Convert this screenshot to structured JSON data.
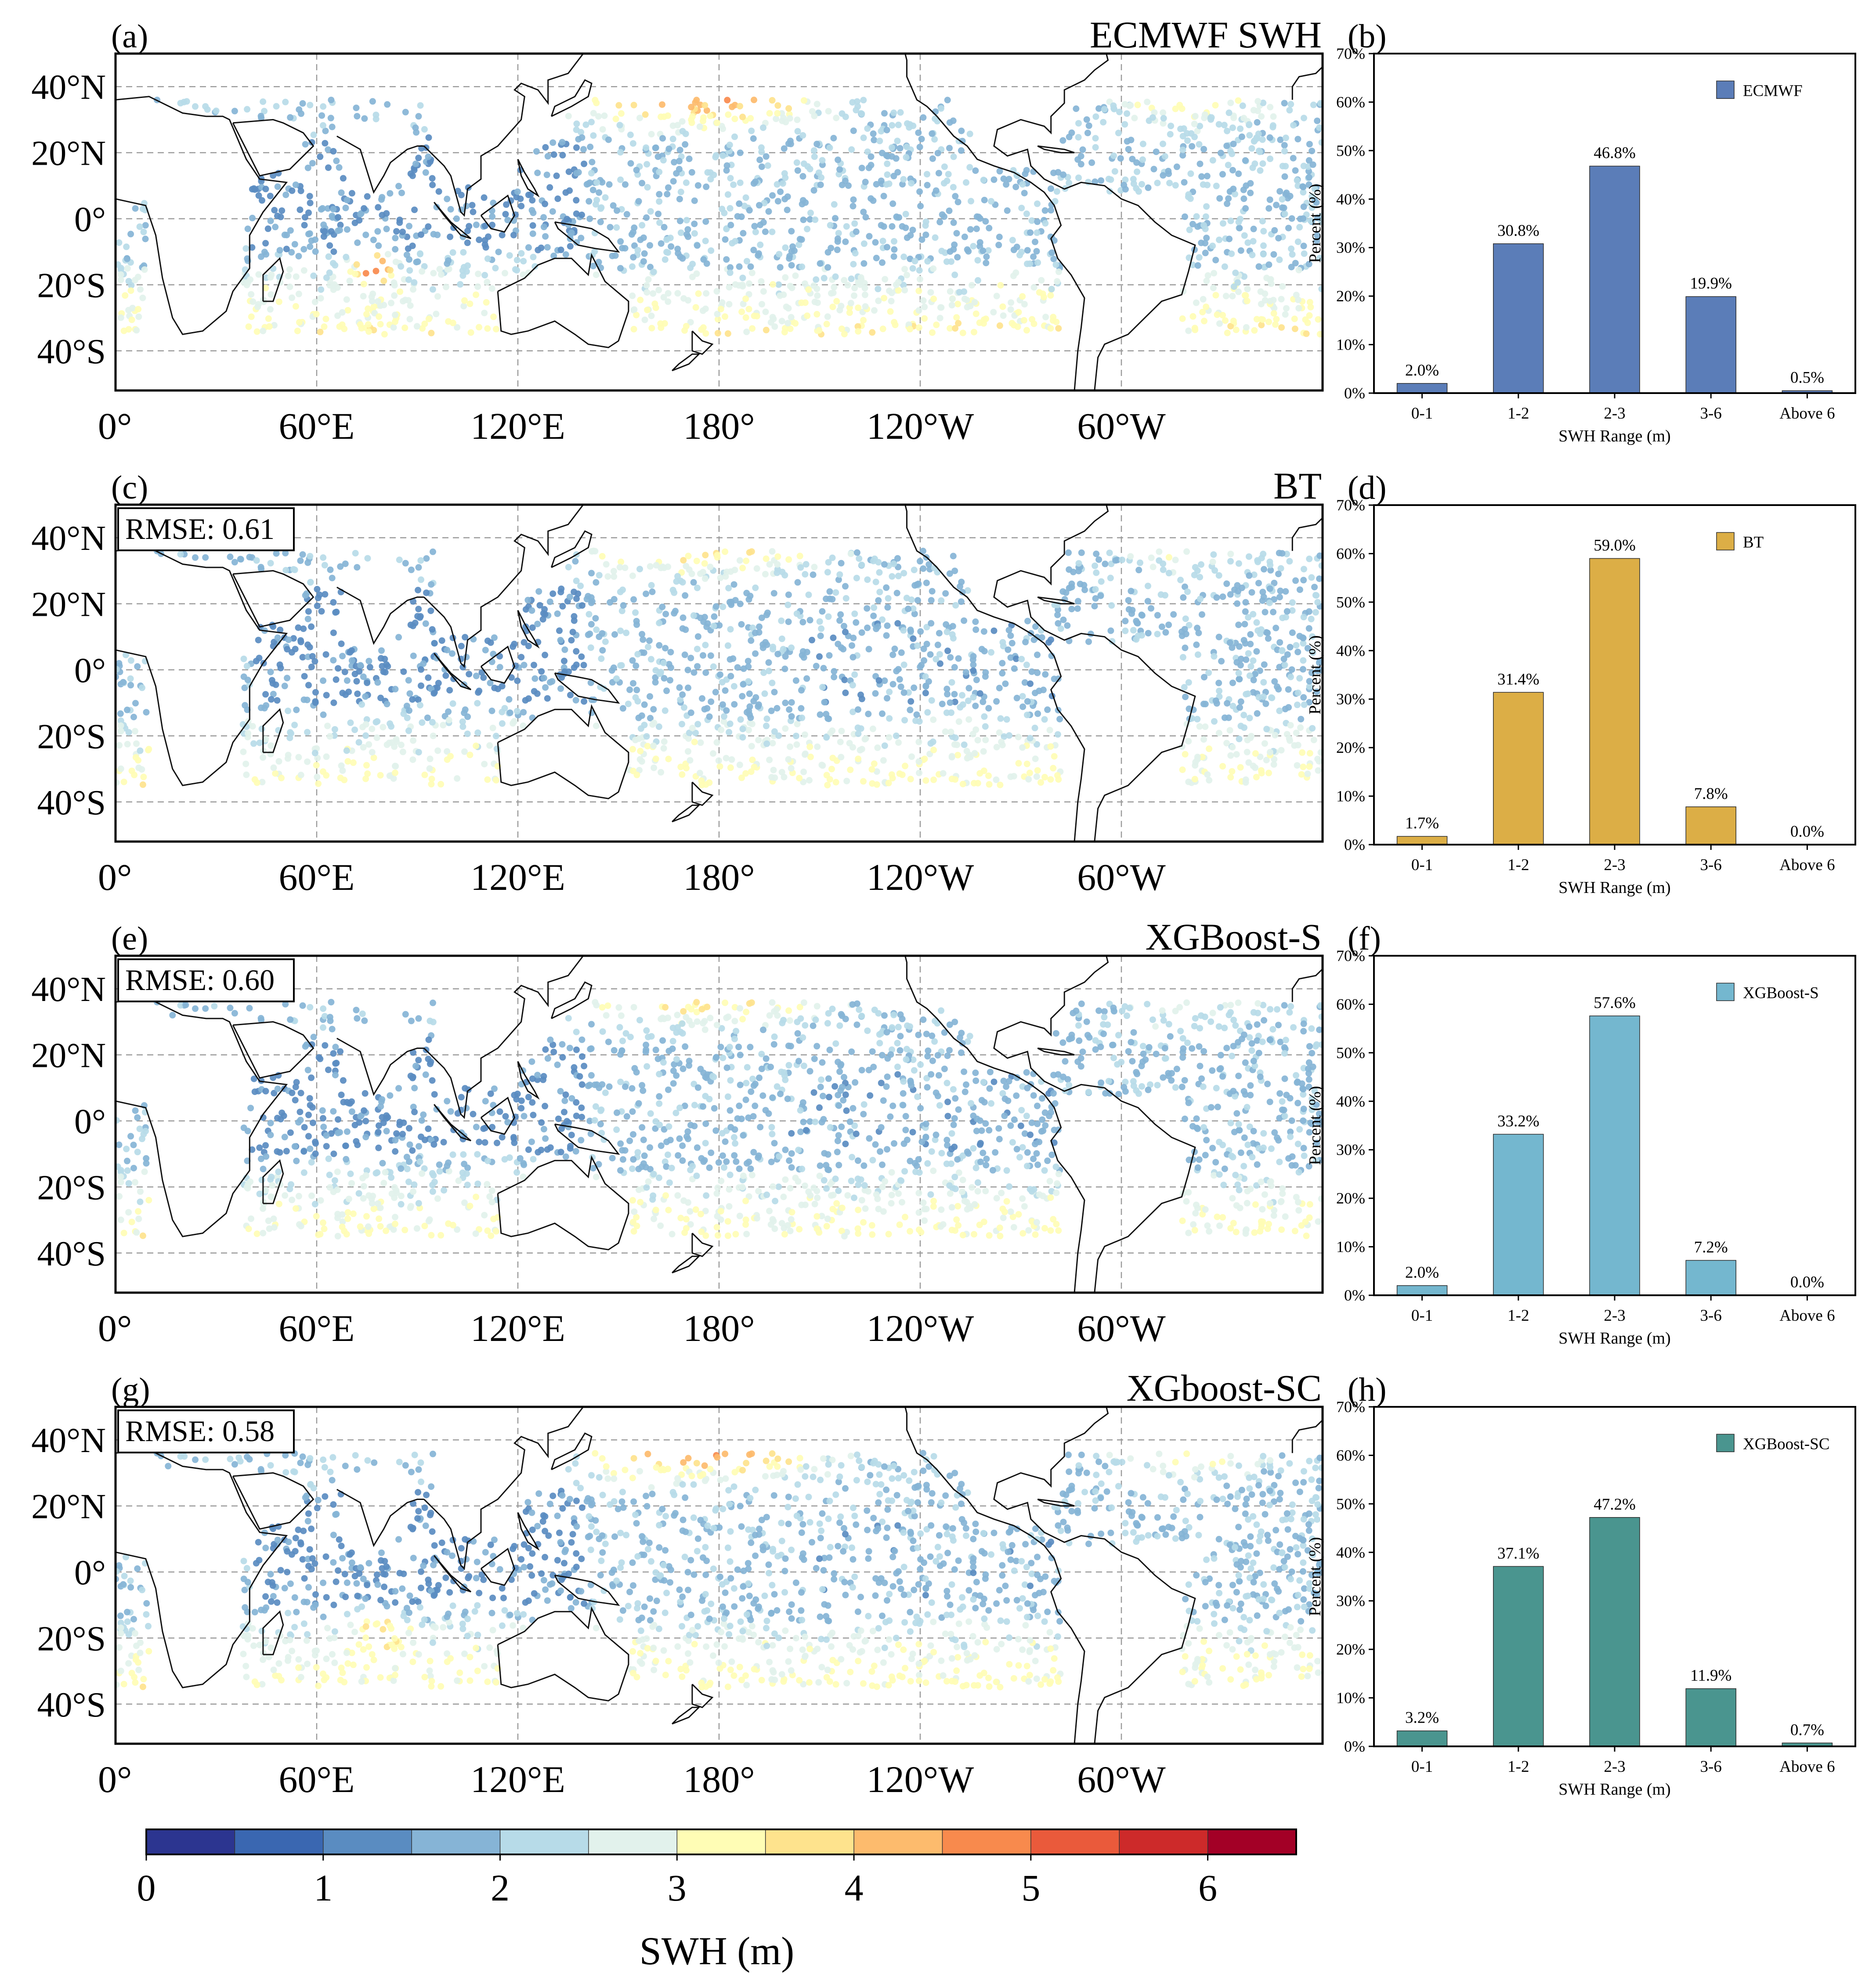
{
  "colorbar": {
    "label": "SWH (m)",
    "ticks": [
      "0",
      "1",
      "2",
      "3",
      "4",
      "5",
      "6"
    ],
    "colors": [
      "#2c3590",
      "#3a67b1",
      "#5a8cc1",
      "#86b4d6",
      "#b7dbe8",
      "#e2f2ec",
      "#fffdb5",
      "#fee38d",
      "#fdbb6d",
      "#f88a4d",
      "#ea5a3b",
      "#cd2a2a",
      "#a30026"
    ]
  },
  "lon_labels": [
    "0°",
    "60°E",
    "120°E",
    "180°",
    "120°W",
    "60°W"
  ],
  "lat_labels": [
    "40°N",
    "20°N",
    "0°",
    "20°S",
    "40°S"
  ],
  "maps": [
    {
      "panel": "(a)",
      "title": "ECMWF SWH",
      "rmse": ""
    },
    {
      "panel": "(c)",
      "title": "BT",
      "rmse": "RMSE: 0.61"
    },
    {
      "panel": "(e)",
      "title": "XGBoost-S",
      "rmse": "RMSE: 0.60"
    },
    {
      "panel": "(g)",
      "title": "XGboost-SC",
      "rmse": "RMSE: 0.58"
    }
  ],
  "bar_common": {
    "xlabel": "SWH Range (m)",
    "ylabel": "Percent (%)",
    "categories": [
      "0-1",
      "1-2",
      "2-3",
      "3-6",
      "Above 6"
    ],
    "yticks": [
      "0%",
      "10%",
      "20%",
      "30%",
      "40%",
      "50%",
      "60%",
      "70%"
    ],
    "ylim": [
      0,
      70
    ]
  },
  "chart_data": [
    {
      "type": "bar",
      "panel": "(b)",
      "categories": [
        "0-1",
        "1-2",
        "2-3",
        "3-6",
        "Above 6"
      ],
      "series": [
        {
          "name": "ECMWF",
          "values": [
            2.0,
            30.8,
            46.8,
            19.9,
            0.5
          ],
          "labels": [
            "2.0%",
            "30.8%",
            "46.8%",
            "19.9%",
            "0.5%"
          ],
          "color": "#5b7db8"
        }
      ],
      "xlabel": "SWH Range (m)",
      "ylabel": "Percent (%)",
      "ylim": [
        0,
        70
      ],
      "legend": "top-right"
    },
    {
      "type": "bar",
      "panel": "(d)",
      "categories": [
        "0-1",
        "1-2",
        "2-3",
        "3-6",
        "Above 6"
      ],
      "series": [
        {
          "name": "BT",
          "values": [
            1.7,
            31.4,
            59.0,
            7.8,
            0.0
          ],
          "labels": [
            "1.7%",
            "31.4%",
            "59.0%",
            "7.8%",
            "0.0%"
          ],
          "color": "#dcae46"
        }
      ],
      "xlabel": "SWH Range (m)",
      "ylabel": "Percent (%)",
      "ylim": [
        0,
        70
      ],
      "legend": "top-right"
    },
    {
      "type": "bar",
      "panel": "(f)",
      "categories": [
        "0-1",
        "1-2",
        "2-3",
        "3-6",
        "Above 6"
      ],
      "series": [
        {
          "name": "XGBoost-S",
          "values": [
            2.0,
            33.2,
            57.6,
            7.2,
            0.0
          ],
          "labels": [
            "2.0%",
            "33.2%",
            "57.6%",
            "7.2%",
            "0.0%"
          ],
          "color": "#74b7cf"
        }
      ],
      "xlabel": "SWH Range (m)",
      "ylabel": "Percent (%)",
      "ylim": [
        0,
        70
      ],
      "legend": "top-right"
    },
    {
      "type": "bar",
      "panel": "(h)",
      "categories": [
        "0-1",
        "1-2",
        "2-3",
        "3-6",
        "Above 6"
      ],
      "series": [
        {
          "name": "XGBoost-SC",
          "values": [
            3.2,
            37.1,
            47.2,
            11.9,
            0.7
          ],
          "labels": [
            "3.2%",
            "37.1%",
            "47.2%",
            "11.9%",
            "0.7%"
          ],
          "color": "#4a958f"
        }
      ],
      "xlabel": "SWH Range (m)",
      "ylabel": "Percent (%)",
      "ylim": [
        0,
        70
      ],
      "legend": "top-right"
    }
  ]
}
